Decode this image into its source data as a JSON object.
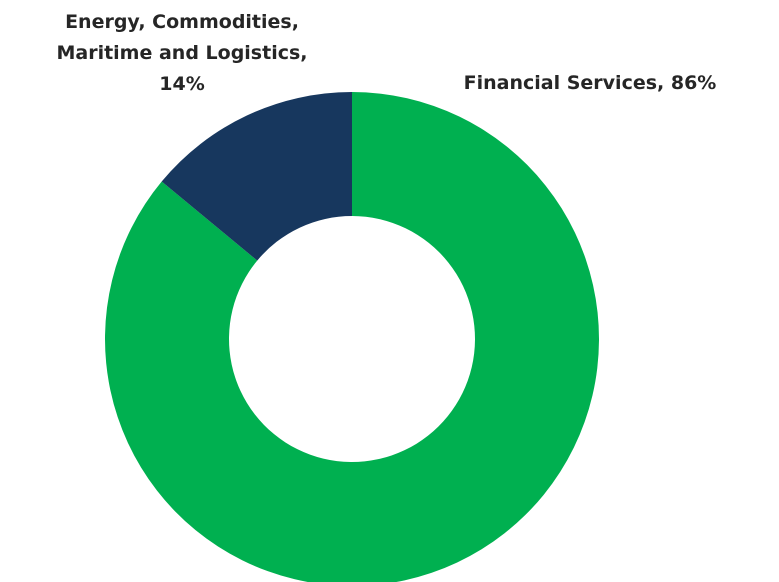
{
  "chart_data": {
    "type": "pie",
    "variant": "donut",
    "title": "",
    "slices": [
      {
        "name": "Financial Services",
        "value": 86,
        "label": "Financial Services, 86%",
        "label_lines": [
          "Financial Services, 86%"
        ],
        "color": "#00B050"
      },
      {
        "name": "Energy, Commodities, Maritime and Logistics",
        "value": 14,
        "label": "Energy, Commodities, Maritime and Logistics, 14%",
        "label_lines": [
          "Energy, Commodities,",
          "Maritime and Logistics,",
          "14%"
        ],
        "color": "#17375E"
      }
    ],
    "start_angle": "top",
    "direction": "clockwise",
    "legend": "none"
  }
}
